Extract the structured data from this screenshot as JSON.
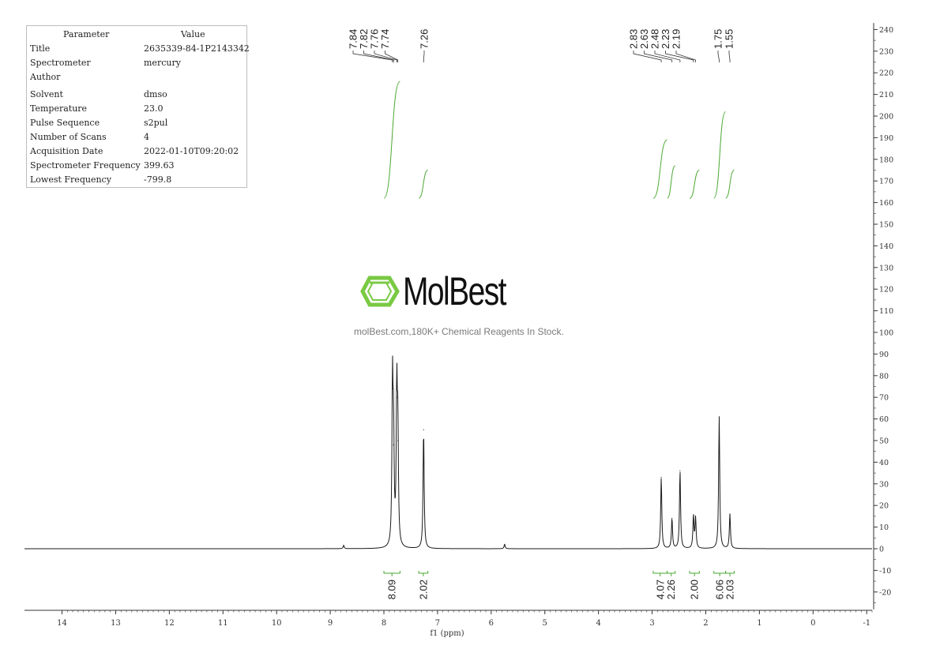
{
  "parameters": {
    "header_param": "Parameter",
    "header_value": "Value",
    "rows": [
      {
        "key": "Title",
        "value": "2635339-84-1P2143342"
      },
      {
        "key": "Spectrometer",
        "value": "mercury"
      },
      {
        "key": "Author",
        "value": ""
      },
      {
        "key": "Solvent",
        "value": "dmso"
      },
      {
        "key": "Temperature",
        "value": "23.0"
      },
      {
        "key": "Pulse Sequence",
        "value": "s2pul"
      },
      {
        "key": "Number of Scans",
        "value": "4"
      },
      {
        "key": "Acquisition Date",
        "value": "2022-01-10T09:20:02"
      },
      {
        "key": "Spectrometer Frequency",
        "value": "399.63"
      },
      {
        "key": "Lowest Frequency",
        "value": "-799.8"
      }
    ]
  },
  "watermark": {
    "brand": "MolBest",
    "tagline": "molBest.com,180K+ Chemical Reagents In Stock."
  },
  "colors": {
    "spectrum": "#1a1a1a",
    "integral": "#4aa832",
    "axis": "#333333",
    "logo_green": "#7ac943"
  },
  "chart_data": {
    "type": "line",
    "title": "",
    "xlabel": "f1 (ppm)",
    "x_ticks": [
      14,
      13,
      12,
      11,
      10,
      9,
      8,
      7,
      6,
      5,
      4,
      3,
      2,
      1,
      0,
      -1
    ],
    "xlim": [
      14.7,
      -1.1
    ],
    "y_ticks": [
      240,
      230,
      220,
      210,
      200,
      190,
      180,
      170,
      160,
      150,
      140,
      130,
      120,
      110,
      100,
      90,
      80,
      70,
      60,
      50,
      40,
      30,
      20,
      10,
      0,
      -10,
      -20
    ],
    "ylim": [
      -28,
      243
    ],
    "y_tick_labels": [
      "240",
      "230",
      "220",
      "210",
      "200",
      "190",
      "180",
      "170",
      "160",
      "150",
      "140",
      "130",
      "120",
      "110",
      "100",
      "90",
      "80",
      "70",
      "60",
      "50",
      "40",
      "30",
      "20",
      "10",
      "0",
      "-10",
      "-20"
    ],
    "peak_labels_group1": [
      "7.84",
      "7.82",
      "7.76",
      "7.74"
    ],
    "peak_labels_group2": [
      "7.26"
    ],
    "peak_labels_group3": [
      "2.83",
      "2.63",
      "2.48",
      "2.23",
      "2.19"
    ],
    "peak_labels_group4": [
      "1.75",
      "1.55"
    ],
    "peaks": [
      {
        "ppm": 7.84,
        "height": 74
      },
      {
        "ppm": 7.82,
        "height": 48
      },
      {
        "ppm": 7.76,
        "height": 70
      },
      {
        "ppm": 7.74,
        "height": 50
      },
      {
        "ppm": 7.26,
        "height": 55
      },
      {
        "ppm": 2.83,
        "height": 33
      },
      {
        "ppm": 2.63,
        "height": 14
      },
      {
        "ppm": 2.48,
        "height": 36
      },
      {
        "ppm": 2.23,
        "height": 15
      },
      {
        "ppm": 2.19,
        "height": 14
      },
      {
        "ppm": 1.75,
        "height": 61
      },
      {
        "ppm": 1.55,
        "height": 16
      },
      {
        "ppm": 8.75,
        "height": 1.5
      },
      {
        "ppm": 5.75,
        "height": 2
      }
    ],
    "integrals": [
      {
        "from": 8.0,
        "to": 7.7,
        "value": "8.09",
        "y_start": 162,
        "y_end": 216
      },
      {
        "from": 7.35,
        "to": 7.18,
        "value": "2.02",
        "y_start": 162,
        "y_end": 175
      },
      {
        "from": 2.98,
        "to": 2.72,
        "value": "4.07",
        "y_start": 162,
        "y_end": 189
      },
      {
        "from": 2.72,
        "to": 2.57,
        "value": "2.26",
        "y_start": 162,
        "y_end": 177
      },
      {
        "from": 2.3,
        "to": 2.12,
        "value": "2.00",
        "y_start": 162,
        "y_end": 175
      },
      {
        "from": 1.85,
        "to": 1.63,
        "value": "6.06",
        "y_start": 162,
        "y_end": 202
      },
      {
        "from": 1.63,
        "to": 1.47,
        "value": "2.03",
        "y_start": 162,
        "y_end": 175
      }
    ]
  }
}
